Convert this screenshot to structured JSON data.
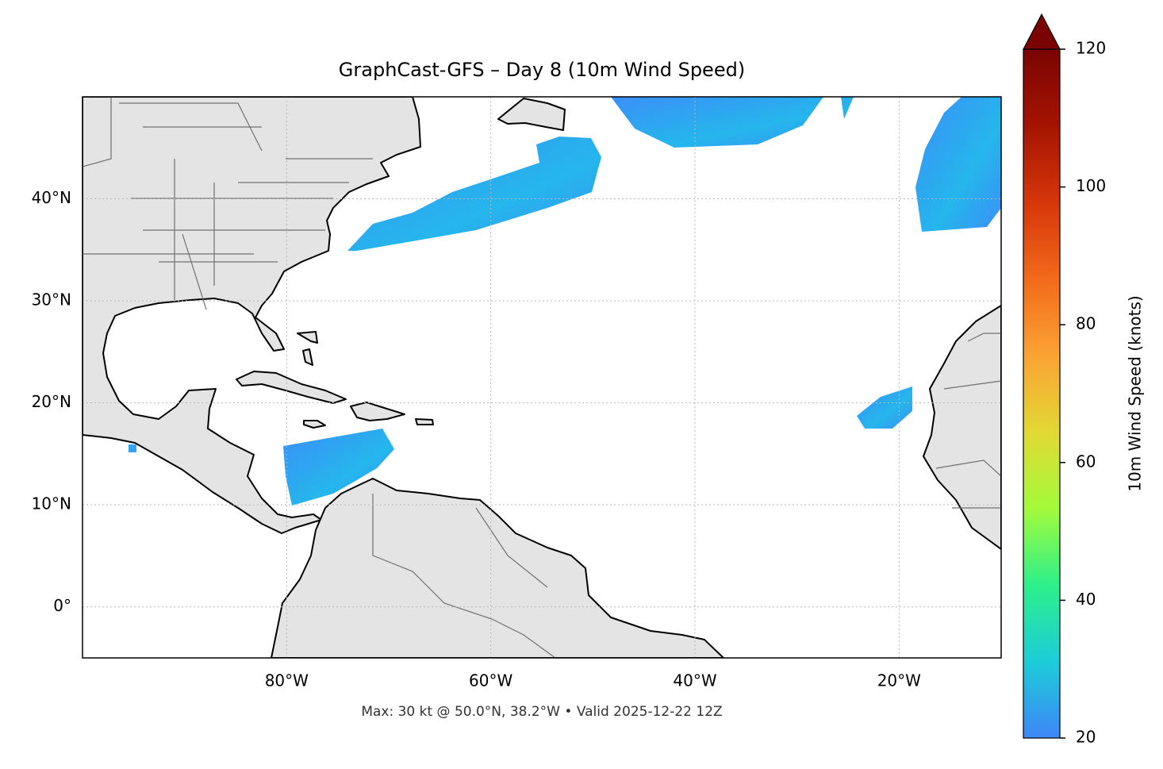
{
  "chart_data": {
    "type": "map",
    "title": "GraphCast-GFS – Day 8 (10m Wind Speed)",
    "caption": "Max: 30 kt @ 50.0°N, 38.2°W • Valid 2025-12-22 12Z",
    "xlim": [
      -100,
      -10
    ],
    "ylim": [
      -5,
      50
    ],
    "xticks": [
      {
        "value": -80,
        "label": "80°W"
      },
      {
        "value": -60,
        "label": "60°W"
      },
      {
        "value": -40,
        "label": "40°W"
      },
      {
        "value": -20,
        "label": "20°W"
      }
    ],
    "yticks": [
      {
        "value": 0,
        "label": "0°"
      },
      {
        "value": 10,
        "label": "10°N"
      },
      {
        "value": 20,
        "label": "20°N"
      },
      {
        "value": 30,
        "label": "30°N"
      },
      {
        "value": 40,
        "label": "40°N"
      }
    ],
    "grid": true,
    "colorbar": {
      "label": "10m Wind Speed (knots)",
      "lim": [
        20,
        120
      ],
      "ticks": [
        20,
        40,
        60,
        80,
        100,
        120
      ],
      "colors": [
        "#3e86f8",
        "#1ccdd8",
        "#2cf08a",
        "#a4fb3b",
        "#e2d834",
        "#fba334",
        "#f26a1a",
        "#d6360a",
        "#a51402",
        "#7a0403"
      ],
      "extend": "max"
    }
  }
}
